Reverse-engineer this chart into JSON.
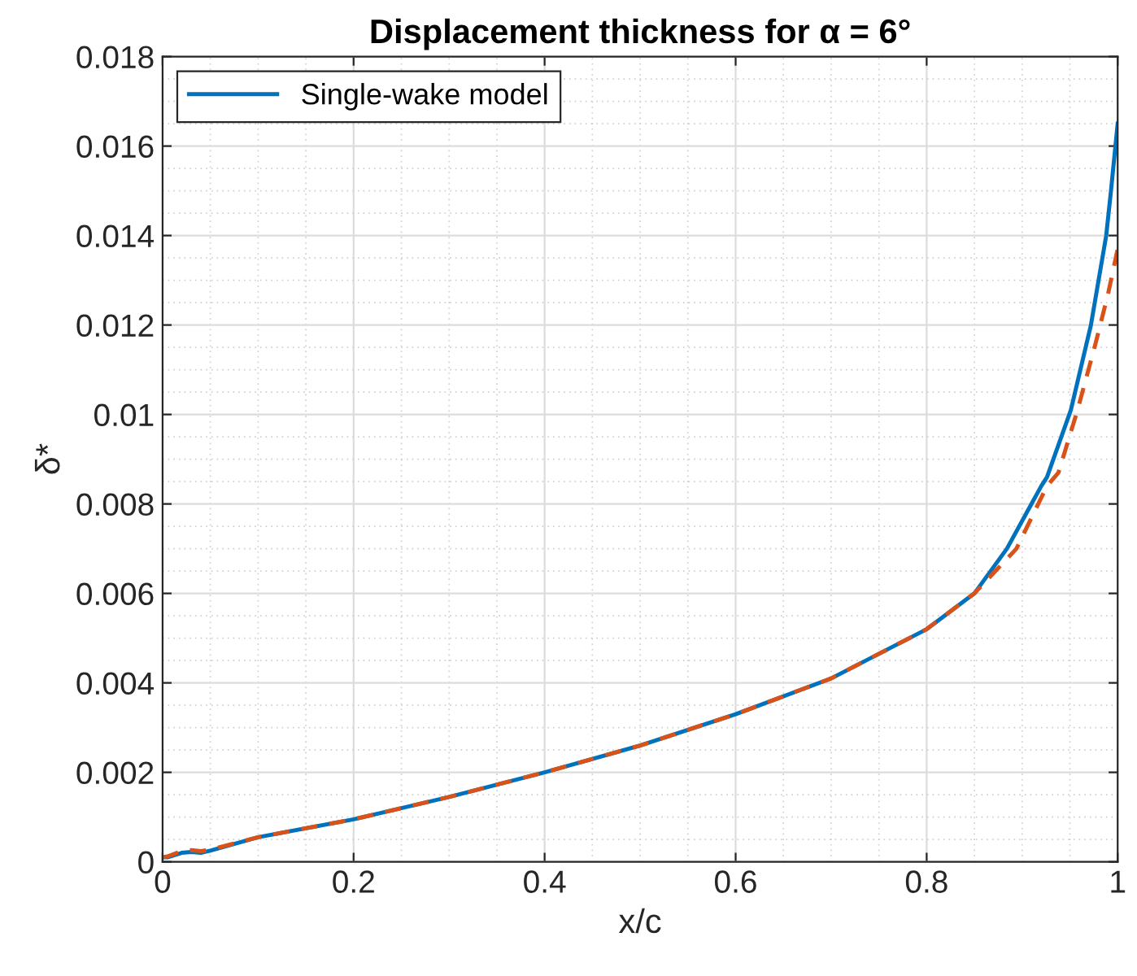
{
  "chart_data": {
    "type": "line",
    "title": "Displacement thickness for α = 6°",
    "xlabel": "x/c",
    "ylabel": "δ*",
    "xlim": [
      0,
      1
    ],
    "ylim": [
      0,
      0.018
    ],
    "xticks": [
      0,
      0.2,
      0.4,
      0.6,
      0.8,
      1
    ],
    "yticks": [
      0,
      0.002,
      0.004,
      0.006,
      0.008,
      0.01,
      0.012,
      0.014,
      0.016,
      0.018
    ],
    "grid": true,
    "legend": "top left",
    "series": [
      {
        "name": "Single-wake model",
        "color": "#0072bd",
        "line_style": "solid",
        "x": [
          0,
          0.005,
          0.02,
          0.03,
          0.04,
          0.05,
          0.1,
          0.2,
          0.3,
          0.4,
          0.5,
          0.6,
          0.7,
          0.8,
          0.85,
          0.884,
          0.92,
          0.926,
          0.951,
          0.972,
          0.988,
          0.993,
          1
        ],
        "values": [
          0.0001,
          0.0001,
          0.0002,
          0.00022,
          0.0002,
          0.00025,
          0.00055,
          0.00095,
          0.00145,
          0.002,
          0.0026,
          0.0033,
          0.0041,
          0.0052,
          0.006,
          0.007,
          0.0084,
          0.0086,
          0.0101,
          0.012,
          0.014,
          0.015,
          0.0165
        ]
      },
      {
        "color": "#d95319",
        "line_style": "dashed",
        "x": [
          0,
          0.005,
          0.02,
          0.03,
          0.04,
          0.05,
          0.1,
          0.2,
          0.3,
          0.4,
          0.5,
          0.6,
          0.7,
          0.8,
          0.85,
          0.894,
          0.926,
          0.938,
          0.958,
          0.977,
          0.99,
          1
        ],
        "values": [
          0.0001,
          0.00012,
          0.00024,
          0.00026,
          0.00024,
          0.00027,
          0.00055,
          0.00095,
          0.00145,
          0.002,
          0.0026,
          0.0033,
          0.0041,
          0.0052,
          0.006,
          0.007,
          0.0084,
          0.0087,
          0.0101,
          0.0116,
          0.0127,
          0.0137
        ]
      }
    ]
  }
}
